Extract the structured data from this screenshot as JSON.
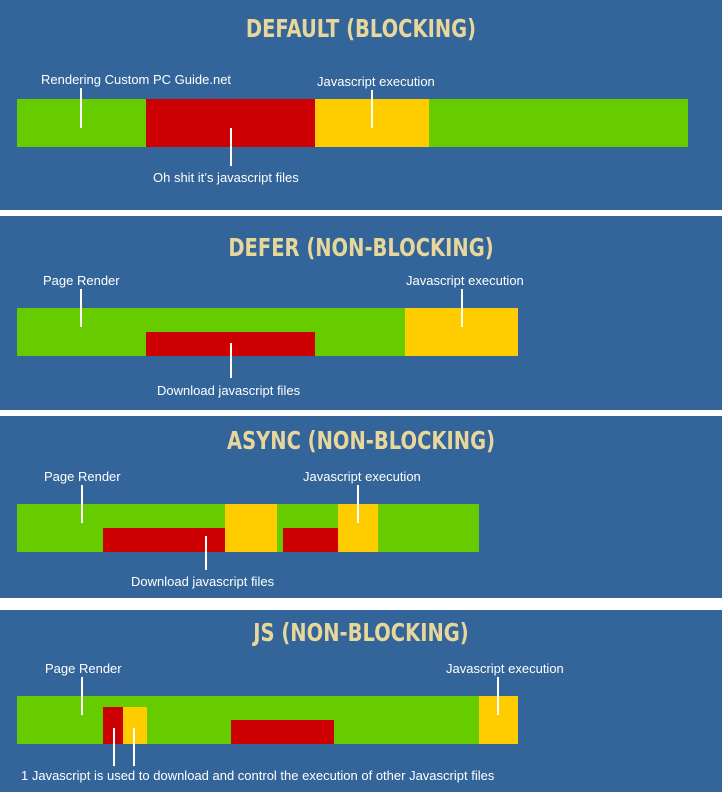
{
  "colors": {
    "panel": "#34659a",
    "green": "#66cc00",
    "red": "#cc0000",
    "yellow": "#ffcc00",
    "title": "#e8d79a"
  },
  "sections": [
    {
      "title": "DEFAULT (BLOCKING)",
      "label_top_left": "Rendering Custom PC Guide.net",
      "label_top_right": "Javascript execution",
      "label_bottom": "Oh shit it’s javascript files"
    },
    {
      "title": "DEFER (NON-BLOCKING)",
      "label_top_left": "Page Render",
      "label_top_right": "Javascript execution",
      "label_bottom": "Download javascript files"
    },
    {
      "title": "ASYNC (NON-BLOCKING)",
      "label_top_left": "Page Render",
      "label_top_right": "Javascript execution",
      "label_bottom": "Download javascript files"
    },
    {
      "title": "JS (NON-BLOCKING)",
      "label_top_left": "Page Render",
      "label_top_right": "Javascript execution",
      "label_bottom": "1 Javascript is used to download and control the execution of other Javascript files"
    }
  ]
}
